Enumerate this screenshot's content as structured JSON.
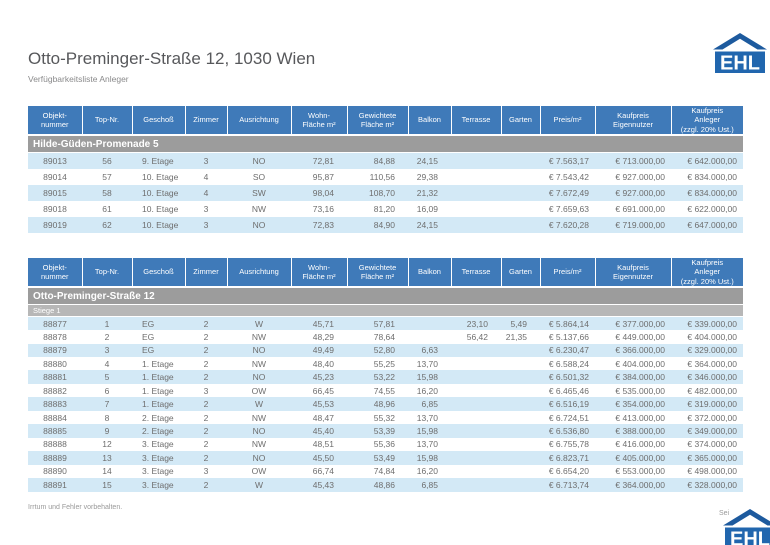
{
  "page": {
    "title": "Otto-Preminger-Straße 12, 1030 Wien",
    "subtitle": "Verfügbarkeitsliste Anleger",
    "footer_note": "Irrtum und Fehler vorbehalten.",
    "footer_page": "Sei",
    "logo_text": "EHL"
  },
  "colors": {
    "header_blue": "#3f7ab9",
    "row_blue": "#d3e9f6",
    "group_gray": "#9c9c9c",
    "subgroup_gray": "#b7b7b7",
    "logo_blue": "#2166ae",
    "logo_roof": "#1d5a9e",
    "text_gray": "#6e6e6e"
  },
  "columns": [
    "Objekt-\nnummer",
    "Top-Nr.",
    "Geschoß",
    "Zimmer",
    "Ausrichtung",
    "Wohn-\nFläche m²",
    "Gewichtete\nFläche m²",
    "Balkon",
    "Terrasse",
    "Garten",
    "Preis/m²",
    "Kaufpreis\nEigennutzer",
    "Kaufpreis\nAnleger\n(zzgl. 20% Ust.)"
  ],
  "tables": [
    {
      "group": "Hilde-Güden-Promenade 5",
      "rows": [
        [
          "89013",
          "56",
          "9. Etage",
          "3",
          "NO",
          "72,81",
          "84,88",
          "24,15",
          "",
          "",
          "€ 7.563,17",
          "€ 713.000,00",
          "€ 642.000,00"
        ],
        [
          "89014",
          "57",
          "10. Etage",
          "4",
          "SO",
          "95,87",
          "110,56",
          "29,38",
          "",
          "",
          "€ 7.543,42",
          "€ 927.000,00",
          "€ 834.000,00"
        ],
        [
          "89015",
          "58",
          "10. Etage",
          "4",
          "SW",
          "98,04",
          "108,70",
          "21,32",
          "",
          "",
          "€ 7.672,49",
          "€ 927.000,00",
          "€ 834.000,00"
        ],
        [
          "89018",
          "61",
          "10. Etage",
          "3",
          "NW",
          "73,16",
          "81,20",
          "16,09",
          "",
          "",
          "€ 7.659,63",
          "€ 691.000,00",
          "€ 622.000,00"
        ],
        [
          "89019",
          "62",
          "10. Etage",
          "3",
          "NO",
          "72,83",
          "84,90",
          "24,15",
          "",
          "",
          "€ 7.620,28",
          "€ 719.000,00",
          "€ 647.000,00"
        ]
      ]
    },
    {
      "group": "Otto-Preminger-Straße 12",
      "subgroup": "Stiege 1",
      "rows": [
        [
          "88877",
          "1",
          "EG",
          "2",
          "W",
          "45,71",
          "57,81",
          "",
          "23,10",
          "5,49",
          "€ 5.864,14",
          "€ 377.000,00",
          "€ 339.000,00"
        ],
        [
          "88878",
          "2",
          "EG",
          "2",
          "NW",
          "48,29",
          "78,64",
          "",
          "56,42",
          "21,35",
          "€ 5.137,66",
          "€ 449.000,00",
          "€ 404.000,00"
        ],
        [
          "88879",
          "3",
          "EG",
          "2",
          "NO",
          "49,49",
          "52,80",
          "6,63",
          "",
          "",
          "€ 6.230,47",
          "€ 366.000,00",
          "€ 329.000,00"
        ],
        [
          "88880",
          "4",
          "1. Etage",
          "2",
          "NW",
          "48,40",
          "55,25",
          "13,70",
          "",
          "",
          "€ 6.588,24",
          "€ 404.000,00",
          "€ 364.000,00"
        ],
        [
          "88881",
          "5",
          "1. Etage",
          "2",
          "NO",
          "45,23",
          "53,22",
          "15,98",
          "",
          "",
          "€ 6.501,32",
          "€ 384.000,00",
          "€ 346.000,00"
        ],
        [
          "88882",
          "6",
          "1. Etage",
          "3",
          "OW",
          "66,45",
          "74,55",
          "16,20",
          "",
          "",
          "€ 6.465,46",
          "€ 535.000,00",
          "€ 482.000,00"
        ],
        [
          "88883",
          "7",
          "1. Etage",
          "2",
          "W",
          "45,53",
          "48,96",
          "6,85",
          "",
          "",
          "€ 6.516,19",
          "€ 354.000,00",
          "€ 319.000,00"
        ],
        [
          "88884",
          "8",
          "2. Etage",
          "2",
          "NW",
          "48,47",
          "55,32",
          "13,70",
          "",
          "",
          "€ 6.724,51",
          "€ 413.000,00",
          "€ 372.000,00"
        ],
        [
          "88885",
          "9",
          "2. Etage",
          "2",
          "NO",
          "45,40",
          "53,39",
          "15,98",
          "",
          "",
          "€ 6.536,80",
          "€ 388.000,00",
          "€ 349.000,00"
        ],
        [
          "88888",
          "12",
          "3. Etage",
          "2",
          "NW",
          "48,51",
          "55,36",
          "13,70",
          "",
          "",
          "€ 6.755,78",
          "€ 416.000,00",
          "€ 374.000,00"
        ],
        [
          "88889",
          "13",
          "3. Etage",
          "2",
          "NO",
          "45,50",
          "53,49",
          "15,98",
          "",
          "",
          "€ 6.823,71",
          "€ 405.000,00",
          "€ 365.000,00"
        ],
        [
          "88890",
          "14",
          "3. Etage",
          "3",
          "OW",
          "66,74",
          "74,84",
          "16,20",
          "",
          "",
          "€ 6.654,20",
          "€ 553.000,00",
          "€ 498.000,00"
        ],
        [
          "88891",
          "15",
          "3. Etage",
          "2",
          "W",
          "45,43",
          "48,86",
          "6,85",
          "",
          "",
          "€ 6.713,74",
          "€ 364.000,00",
          "€ 328.000,00"
        ]
      ]
    }
  ]
}
